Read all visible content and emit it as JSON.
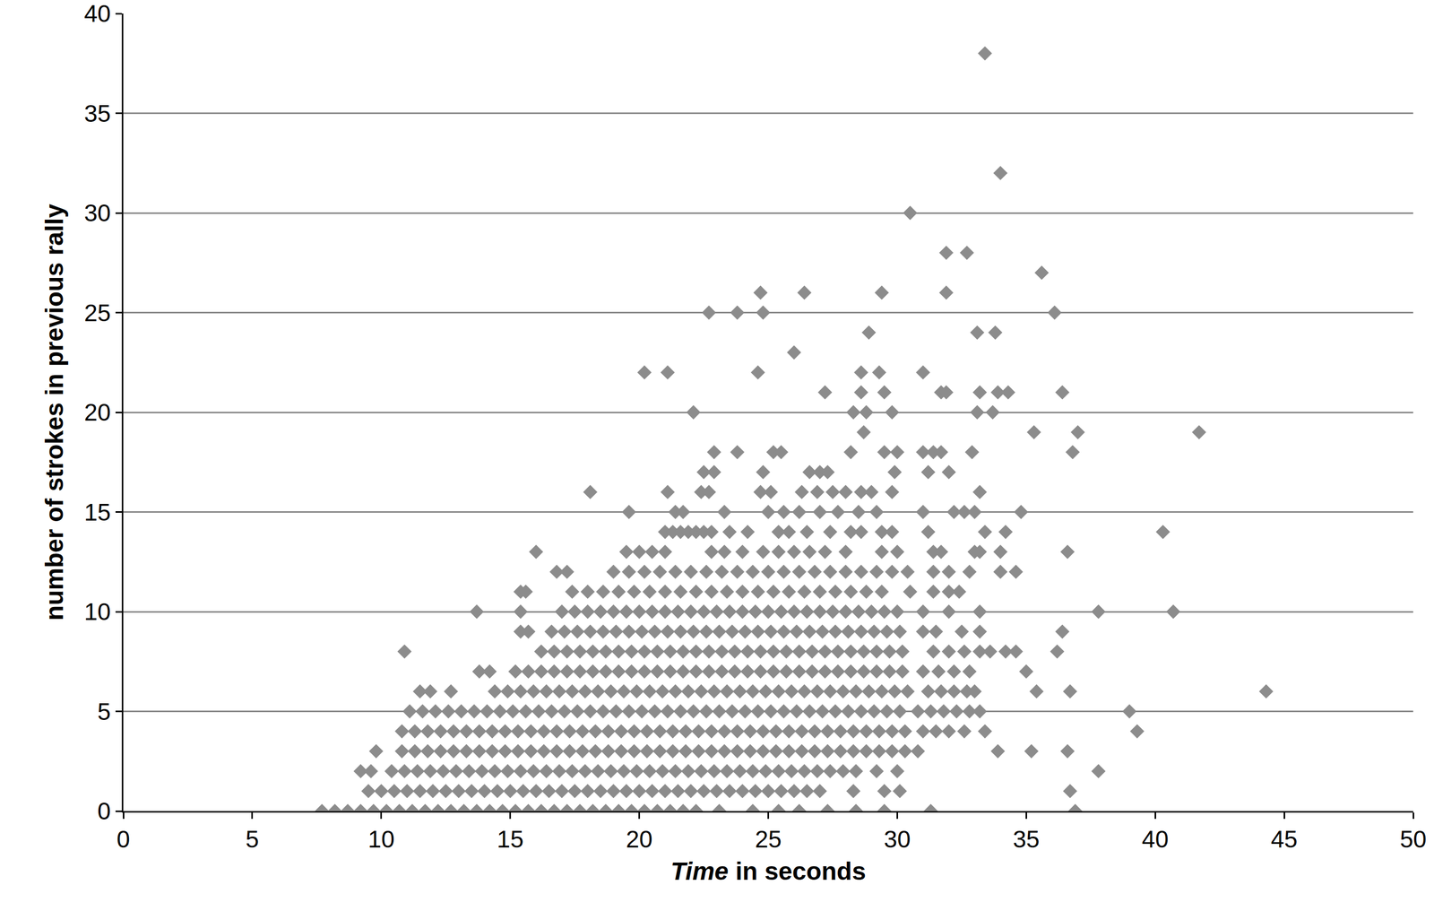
{
  "chart_data": {
    "type": "scatter",
    "x_label": "Time in seconds",
    "y_label": "number of strokes in previous rally",
    "color": "#8c8c8c",
    "marker": "diamond",
    "grid": true,
    "xlim": [
      0,
      50
    ],
    "xticks": [
      0,
      5,
      10,
      15,
      20,
      25,
      30,
      35,
      40,
      45,
      50
    ],
    "ylim": [
      0,
      40
    ],
    "yticks": [
      0,
      5,
      10,
      15,
      20,
      25,
      30,
      35,
      40
    ],
    "rows": [
      {
        "y": 0,
        "x": [
          7.7,
          8.2,
          8.7,
          9.2,
          9.7,
          10.2,
          10.7,
          11.2,
          11.7,
          12.2,
          12.7,
          13.2,
          13.7,
          14.2,
          14.7,
          15.2,
          15.7,
          16.2,
          16.7,
          17.2,
          17.7,
          18.2,
          18.7,
          19.2,
          19.7,
          20.2,
          20.7,
          21.2,
          21.7,
          22.2,
          23.1,
          24.4,
          25.4,
          26.2,
          27.3,
          28.4,
          29.5,
          31.3,
          36.9
        ]
      },
      {
        "y": 1,
        "x": [
          9.5,
          10,
          10.5,
          11,
          11.5,
          12,
          12.5,
          13,
          13.5,
          14,
          14.5,
          15,
          15.5,
          16,
          16.5,
          17,
          17.5,
          18,
          18.5,
          19,
          19.5,
          20,
          20.5,
          21,
          21.5,
          22,
          22.5,
          23,
          23.5,
          24,
          24.5,
          25,
          25.5,
          26,
          26.5,
          27,
          28.3,
          29.5,
          30.1,
          36.7
        ]
      },
      {
        "y": 2,
        "x": [
          9.2,
          9.6,
          10.4,
          10.9,
          11.4,
          11.9,
          12.4,
          12.9,
          13.4,
          13.9,
          14.4,
          14.9,
          15.4,
          15.9,
          16.4,
          16.9,
          17.4,
          17.9,
          18.4,
          18.9,
          19.4,
          19.9,
          20.4,
          20.9,
          21.4,
          21.9,
          22.4,
          22.9,
          23.4,
          23.9,
          24.4,
          24.9,
          25.4,
          25.9,
          26.4,
          26.9,
          27.4,
          27.9,
          28.4,
          29.2,
          30.0,
          37.8
        ]
      },
      {
        "y": 3,
        "x": [
          9.8,
          10.8,
          11.3,
          11.8,
          12.3,
          12.8,
          13.3,
          13.8,
          14.3,
          14.8,
          15.3,
          15.8,
          16.3,
          16.8,
          17.3,
          17.8,
          18.3,
          18.8,
          19.3,
          19.8,
          20.3,
          20.8,
          21.3,
          21.8,
          22.3,
          22.8,
          23.3,
          23.8,
          24.3,
          24.8,
          25.3,
          25.8,
          26.3,
          26.8,
          27.3,
          27.8,
          28.3,
          28.8,
          29.3,
          29.8,
          30.3,
          30.8,
          33.9,
          35.2,
          36.6
        ]
      },
      {
        "y": 4,
        "x": [
          10.8,
          11.3,
          11.8,
          12.3,
          12.8,
          13.3,
          13.8,
          14.3,
          14.8,
          15.3,
          15.8,
          16.3,
          16.8,
          17.3,
          17.8,
          18.3,
          18.8,
          19.3,
          19.8,
          20.3,
          20.8,
          21.3,
          21.8,
          22.3,
          22.8,
          23.3,
          23.8,
          24.3,
          24.8,
          25.3,
          25.8,
          26.3,
          26.8,
          27.3,
          27.8,
          28.3,
          28.8,
          29.3,
          29.8,
          30.3,
          31.0,
          31.5,
          32.0,
          32.6,
          33.4,
          39.3
        ]
      },
      {
        "y": 5,
        "x": [
          11.1,
          11.6,
          12.1,
          12.6,
          13.1,
          13.6,
          14.1,
          14.6,
          15.1,
          15.6,
          16.1,
          16.6,
          17.1,
          17.6,
          18.1,
          18.6,
          19.1,
          19.6,
          20.1,
          20.6,
          21.1,
          21.6,
          22.1,
          22.6,
          23.1,
          23.6,
          24.1,
          24.6,
          25.1,
          25.6,
          26.1,
          26.6,
          27.1,
          27.6,
          28.1,
          28.6,
          29.1,
          29.6,
          30.1,
          30.8,
          31.3,
          31.8,
          32.3,
          32.8,
          33.2,
          39.0
        ]
      },
      {
        "y": 6,
        "x": [
          11.5,
          11.9,
          12.7,
          14.4,
          14.9,
          15.4,
          15.9,
          16.4,
          16.9,
          17.4,
          17.9,
          18.4,
          18.9,
          19.4,
          19.9,
          20.4,
          20.9,
          21.4,
          21.9,
          22.4,
          22.9,
          23.4,
          23.9,
          24.4,
          24.9,
          25.4,
          25.9,
          26.4,
          26.9,
          27.4,
          27.9,
          28.4,
          28.9,
          29.4,
          29.9,
          30.4,
          31.2,
          31.7,
          32.2,
          32.7,
          33.0,
          35.4,
          36.7,
          44.3
        ]
      },
      {
        "y": 7,
        "x": [
          13.8,
          14.2,
          15.2,
          15.7,
          16.2,
          16.7,
          17.2,
          17.7,
          18.2,
          18.7,
          19.2,
          19.7,
          20.2,
          20.7,
          21.2,
          21.7,
          22.2,
          22.7,
          23.2,
          23.7,
          24.2,
          24.7,
          25.2,
          25.7,
          26.2,
          26.7,
          27.2,
          27.7,
          28.2,
          28.7,
          29.2,
          29.7,
          30.2,
          31.0,
          31.6,
          32.2,
          32.8,
          35.0
        ]
      },
      {
        "y": 8,
        "x": [
          10.9,
          16.2,
          16.7,
          17.2,
          17.7,
          18.2,
          18.7,
          19.2,
          19.7,
          20.2,
          20.7,
          21.2,
          21.7,
          22.2,
          22.7,
          23.2,
          23.7,
          24.2,
          24.7,
          25.2,
          25.7,
          26.2,
          26.7,
          27.2,
          27.7,
          28.2,
          28.7,
          29.2,
          29.7,
          30.2,
          31.4,
          32.0,
          32.6,
          33.2,
          33.6,
          34.2,
          34.6,
          36.2
        ]
      },
      {
        "y": 9,
        "x": [
          15.4,
          15.7,
          16.6,
          17.1,
          17.6,
          18.1,
          18.6,
          19.1,
          19.6,
          20.1,
          20.6,
          21.1,
          21.6,
          22.1,
          22.6,
          23.1,
          23.6,
          24.1,
          24.6,
          25.1,
          25.6,
          26.1,
          26.6,
          27.1,
          27.6,
          28.1,
          28.6,
          29.1,
          29.6,
          30.1,
          31.0,
          31.5,
          32.5,
          33.2,
          36.4
        ]
      },
      {
        "y": 10,
        "x": [
          13.7,
          15.4,
          17.0,
          17.5,
          18.0,
          18.5,
          19.0,
          19.5,
          20.0,
          20.5,
          21.0,
          21.5,
          22.0,
          22.5,
          23.0,
          23.5,
          24.0,
          24.5,
          25.0,
          25.5,
          26.0,
          26.5,
          27.0,
          27.5,
          28.0,
          28.5,
          29.0,
          29.5,
          30.0,
          31.0,
          32.0,
          33.2,
          37.8,
          40.7
        ]
      },
      {
        "y": 11,
        "x": [
          15.4,
          15.6,
          17.4,
          18.0,
          18.6,
          19.2,
          19.8,
          20.4,
          21.0,
          21.6,
          22.2,
          22.8,
          23.4,
          24.0,
          24.6,
          25.2,
          25.8,
          26.4,
          27.0,
          27.6,
          28.2,
          28.8,
          29.4,
          30.5,
          31.4,
          32.0,
          32.4
        ]
      },
      {
        "y": 12,
        "x": [
          16.8,
          17.2,
          19.0,
          19.6,
          20.2,
          20.8,
          21.4,
          22.0,
          22.6,
          23.2,
          23.8,
          24.4,
          25.0,
          25.6,
          26.2,
          26.8,
          27.4,
          28.0,
          28.6,
          29.2,
          29.8,
          30.4,
          31.4,
          32.0,
          32.8,
          34.0,
          34.6
        ]
      },
      {
        "y": 13,
        "x": [
          16.0,
          19.5,
          20.0,
          20.5,
          21.0,
          22.8,
          23.3,
          24.0,
          24.8,
          25.4,
          26.0,
          26.6,
          27.2,
          28.0,
          29.4,
          30.0,
          31.4,
          31.7,
          33.0,
          33.2,
          34.0,
          36.6
        ]
      },
      {
        "y": 14,
        "x": [
          21.0,
          21.3,
          21.6,
          21.9,
          22.2,
          22.5,
          22.8,
          23.5,
          24.2,
          25.4,
          25.8,
          26.5,
          27.4,
          28.2,
          28.6,
          29.4,
          29.8,
          31.2,
          33.4,
          34.2,
          40.3
        ]
      },
      {
        "y": 15,
        "x": [
          19.6,
          21.4,
          21.7,
          23.3,
          25.0,
          25.6,
          26.2,
          27.0,
          27.7,
          28.5,
          29.2,
          31.0,
          32.2,
          32.6,
          33.0,
          34.8
        ]
      },
      {
        "y": 16,
        "x": [
          18.1,
          21.1,
          22.4,
          22.7,
          24.7,
          25.1,
          26.3,
          26.9,
          27.5,
          28.0,
          28.6,
          29.0,
          29.8,
          33.2
        ]
      },
      {
        "y": 17,
        "x": [
          22.5,
          22.9,
          24.8,
          26.6,
          27.0,
          27.3,
          29.9,
          31.2,
          32.0
        ]
      },
      {
        "y": 18,
        "x": [
          22.9,
          23.8,
          25.2,
          25.5,
          28.2,
          29.5,
          30.0,
          31.0,
          31.4,
          31.7,
          32.9,
          36.8
        ]
      },
      {
        "y": 19,
        "x": [
          28.7,
          35.3,
          37.0,
          41.7
        ]
      },
      {
        "y": 20,
        "x": [
          22.1,
          28.3,
          28.8,
          29.8,
          33.1,
          33.7
        ]
      },
      {
        "y": 21,
        "x": [
          27.2,
          28.6,
          29.5,
          31.7,
          31.9,
          33.2,
          33.9,
          34.3,
          36.4
        ]
      },
      {
        "y": 22,
        "x": [
          20.2,
          21.1,
          24.6,
          28.6,
          29.3,
          31.0
        ]
      },
      {
        "y": 23,
        "x": [
          26.0
        ]
      },
      {
        "y": 24,
        "x": [
          28.9,
          33.1,
          33.8
        ]
      },
      {
        "y": 25,
        "x": [
          22.7,
          23.8,
          24.8,
          36.1
        ]
      },
      {
        "y": 26,
        "x": [
          24.7,
          26.4,
          29.4,
          31.9
        ]
      },
      {
        "y": 27,
        "x": [
          35.6
        ]
      },
      {
        "y": 28,
        "x": [
          31.9,
          32.7
        ]
      },
      {
        "y": 30,
        "x": [
          30.5
        ]
      },
      {
        "y": 32,
        "x": [
          34.0
        ]
      },
      {
        "y": 38,
        "x": [
          33.4
        ]
      }
    ]
  }
}
